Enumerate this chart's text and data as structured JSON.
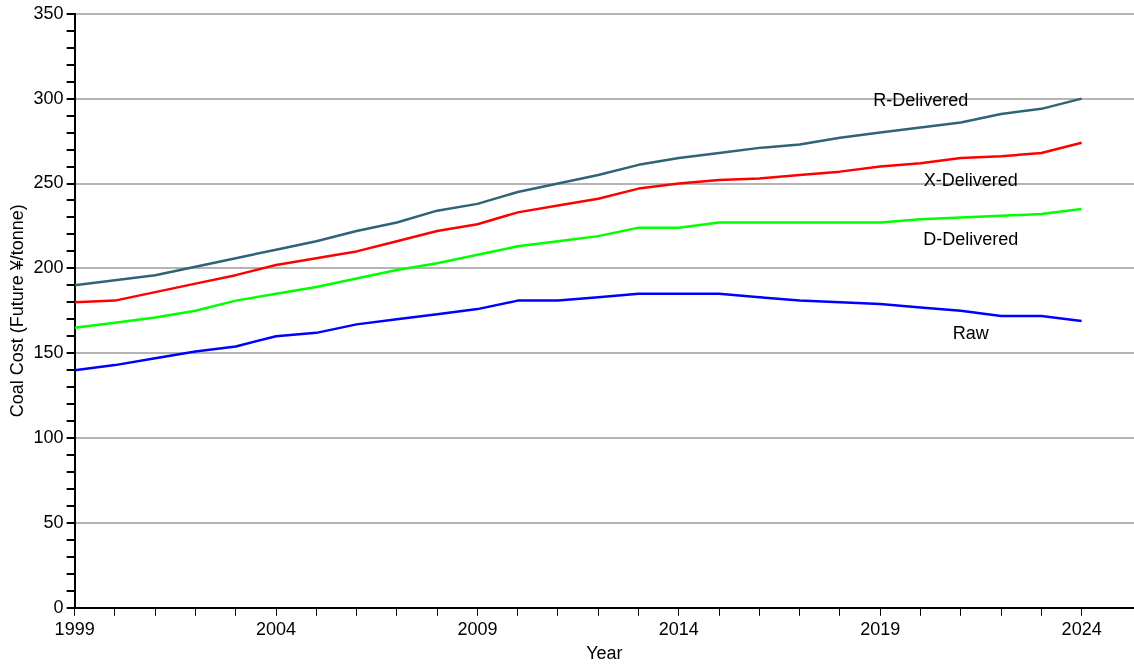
{
  "chart_data": {
    "type": "line",
    "xlabel": "Year",
    "ylabel": "Coal Cost (Future ¥/tonne)",
    "x": [
      1999,
      2000,
      2001,
      2002,
      2003,
      2004,
      2005,
      2006,
      2007,
      2008,
      2009,
      2010,
      2011,
      2012,
      2013,
      2014,
      2015,
      2016,
      2017,
      2018,
      2019,
      2020,
      2021,
      2022,
      2023,
      2024
    ],
    "series": [
      {
        "name": "R-Delivered",
        "color": "#2e6476",
        "values": [
          190,
          193,
          196,
          201,
          206,
          211,
          216,
          222,
          227,
          234,
          238,
          245,
          250,
          255,
          261,
          265,
          268,
          271,
          273,
          277,
          280,
          283,
          286,
          291,
          294,
          300
        ]
      },
      {
        "name": "X-Delivered",
        "color": "#ff0000",
        "values": [
          180,
          181,
          186,
          191,
          196,
          202,
          206,
          210,
          216,
          222,
          226,
          233,
          237,
          241,
          247,
          250,
          252,
          253,
          255,
          257,
          260,
          262,
          265,
          266,
          268,
          274
        ]
      },
      {
        "name": "D-Delivered",
        "color": "#00ff00",
        "values": [
          165,
          168,
          171,
          175,
          181,
          185,
          189,
          194,
          199,
          203,
          208,
          213,
          216,
          219,
          224,
          224,
          227,
          227,
          227,
          227,
          227,
          229,
          230,
          231,
          232,
          235
        ]
      },
      {
        "name": "Raw",
        "color": "#0000ff",
        "values": [
          140,
          143,
          147,
          151,
          154,
          160,
          162,
          167,
          170,
          173,
          176,
          181,
          181,
          183,
          185,
          185,
          185,
          183,
          181,
          180,
          179,
          177,
          175,
          172,
          172,
          169
        ]
      }
    ],
    "xlim": [
      1999,
      2025.3
    ],
    "xticks": [
      1999,
      {
        "value": 2000,
        "label": null
      },
      {
        "value": 2001,
        "label": null
      },
      {
        "value": 2002,
        "label": null
      },
      {
        "value": 2003,
        "label": null
      },
      2004,
      {
        "value": 2005,
        "label": null
      },
      {
        "value": 2006,
        "label": null
      },
      {
        "value": 2007,
        "label": null
      },
      {
        "value": 2008,
        "label": null
      },
      2009,
      {
        "value": 2010,
        "label": null
      },
      {
        "value": 2011,
        "label": null
      },
      {
        "value": 2012,
        "label": null
      },
      {
        "value": 2013,
        "label": null
      },
      2014,
      {
        "value": 2015,
        "label": null
      },
      {
        "value": 2016,
        "label": null
      },
      {
        "value": 2017,
        "label": null
      },
      {
        "value": 2018,
        "label": null
      },
      2019,
      {
        "value": 2020,
        "label": null
      },
      {
        "value": 2021,
        "label": null
      },
      {
        "value": 2022,
        "label": null
      },
      {
        "value": 2023,
        "label": null
      },
      2024
    ],
    "ylim": [
      0,
      350
    ],
    "yticks": [
      0,
      {
        "value": 10,
        "label": null
      },
      {
        "value": 20,
        "label": null
      },
      {
        "value": 30,
        "label": null
      },
      {
        "value": 40,
        "label": null
      },
      50,
      {
        "value": 60,
        "label": null
      },
      {
        "value": 70,
        "label": null
      },
      {
        "value": 80,
        "label": null
      },
      {
        "value": 90,
        "label": null
      },
      100,
      {
        "value": 110,
        "label": null
      },
      {
        "value": 120,
        "label": null
      },
      {
        "value": 130,
        "label": null
      },
      {
        "value": 140,
        "label": null
      },
      150,
      {
        "value": 160,
        "label": null
      },
      {
        "value": 170,
        "label": null
      },
      {
        "value": 180,
        "label": null
      },
      {
        "value": 190,
        "label": null
      },
      200,
      {
        "value": 210,
        "label": null
      },
      {
        "value": 220,
        "label": null
      },
      {
        "value": 230,
        "label": null
      },
      {
        "value": 240,
        "label": null
      },
      250,
      {
        "value": 260,
        "label": null
      },
      {
        "value": 270,
        "label": null
      },
      {
        "value": 280,
        "label": null
      },
      {
        "value": 290,
        "label": null
      },
      300,
      {
        "value": 310,
        "label": null
      },
      {
        "value": 320,
        "label": null
      },
      {
        "value": 330,
        "label": null
      },
      {
        "value": 340,
        "label": null
      },
      350
    ],
    "grid": "y",
    "legend": false,
    "marker": "none",
    "line_style": "solid"
  }
}
